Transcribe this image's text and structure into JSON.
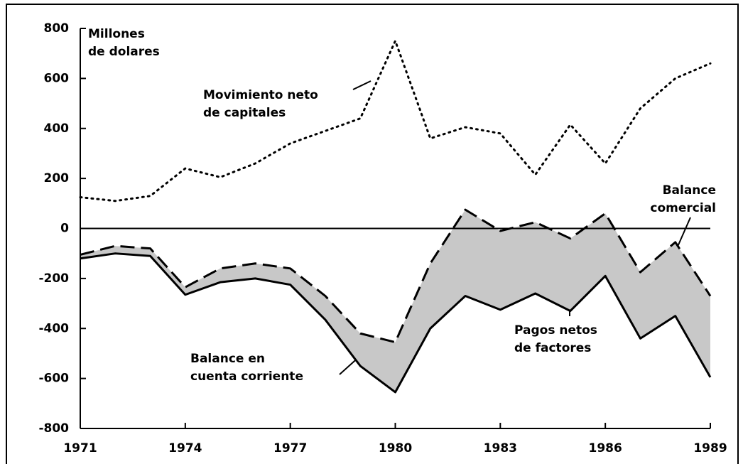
{
  "chart_data": {
    "type": "line",
    "x": [
      1971,
      1972,
      1973,
      1974,
      1975,
      1976,
      1977,
      1978,
      1979,
      1980,
      1981,
      1982,
      1983,
      1984,
      1985,
      1986,
      1987,
      1988,
      1989
    ],
    "series": [
      {
        "style": "dotted",
        "color": "#000000",
        "values": [
          125,
          110,
          130,
          240,
          205,
          260,
          340,
          390,
          440,
          750,
          360,
          405,
          380,
          215,
          415,
          260,
          480,
          600,
          660
        ]
      },
      {
        "style": "dashed",
        "color": "#000000",
        "values": [
          -105,
          -70,
          -80,
          -235,
          -160,
          -140,
          -160,
          -270,
          -420,
          -455,
          -140,
          75,
          -10,
          25,
          -40,
          60,
          -175,
          -55,
          -270
        ]
      },
      {
        "style": "solid",
        "color": "#000000",
        "values": [
          -120,
          -100,
          -110,
          -265,
          -215,
          -200,
          -225,
          -365,
          -550,
          -655,
          -400,
          -270,
          -325,
          -260,
          -330,
          -190,
          -440,
          -350,
          -595
        ]
      }
    ],
    "fill_between": {
      "series": [
        1,
        2
      ],
      "color": "#c8c8c8"
    },
    "xlim": [
      1971,
      1989
    ],
    "xticks": [
      1971,
      1974,
      1977,
      1980,
      1983,
      1986,
      1989
    ],
    "ylim": [
      -800,
      800
    ],
    "yticks": [
      -800,
      -600,
      -400,
      -200,
      0,
      200,
      400,
      600,
      800
    ],
    "zero_line": true,
    "annotations": [
      {
        "lines": [
          "Millones",
          "de dolares"
        ]
      },
      {
        "lines": [
          "Movimiento neto",
          "de capitales"
        ]
      },
      {
        "lines": [
          "Balance",
          "comercial"
        ]
      },
      {
        "lines": [
          "Pagos netos",
          "de factores"
        ]
      },
      {
        "lines": [
          "Balance en",
          "cuenta corriente"
        ]
      }
    ]
  }
}
